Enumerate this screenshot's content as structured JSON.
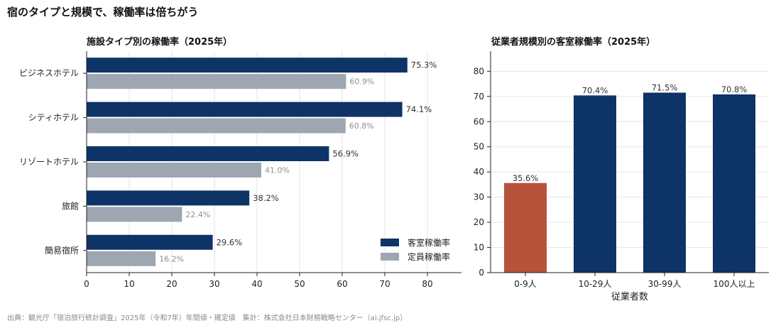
{
  "main_title": "宿のタイプと規模で、稼働率は倍ちがう",
  "source": "出典：観光庁「宿泊旅行統計調査」2025年（令和7年）年間値・確定値　集計：株式会社日本財務戦略センター（ai.jfsc.jp）",
  "colors": {
    "navy": "#0e3366",
    "gray": "#9ea6b1",
    "rust": "#b8533b",
    "grid": "#e6e6e6",
    "axis": "#222222"
  },
  "chart_data": [
    {
      "type": "bar",
      "orientation": "horizontal",
      "title": "施設タイプ別の稼働率（2025年）",
      "categories": [
        "ビジネスホテル",
        "シティホテル",
        "リゾートホテル",
        "旅館",
        "簡易宿所"
      ],
      "series": [
        {
          "name": "客室稼働率",
          "values": [
            75.3,
            74.1,
            56.9,
            38.2,
            29.6
          ],
          "labels": [
            "75.3%",
            "74.1%",
            "56.9%",
            "38.2%",
            "29.6%"
          ]
        },
        {
          "name": "定員稼働率",
          "values": [
            60.9,
            60.8,
            41.0,
            22.4,
            16.2
          ],
          "labels": [
            "60.9%",
            "60.8%",
            "41.0%",
            "22.4%",
            "16.2%"
          ]
        }
      ],
      "xlim": [
        0,
        88
      ],
      "xticks": [
        0,
        10,
        20,
        30,
        40,
        50,
        60,
        70,
        80
      ],
      "grid": true,
      "legend": "bottom-right"
    },
    {
      "type": "bar",
      "title": "従業者規模別の客室稼働率（2025年）",
      "categories": [
        "0-9人",
        "10-29人",
        "30-99人",
        "100人以上"
      ],
      "values": [
        35.6,
        70.4,
        71.5,
        70.8
      ],
      "labels": [
        "35.6%",
        "70.4%",
        "71.5%",
        "70.8%"
      ],
      "xlabel": "従業者数",
      "ylim": [
        0,
        88
      ],
      "yticks": [
        0,
        10,
        20,
        30,
        40,
        50,
        60,
        70,
        80
      ],
      "grid": true,
      "highlight_index": 0
    }
  ]
}
